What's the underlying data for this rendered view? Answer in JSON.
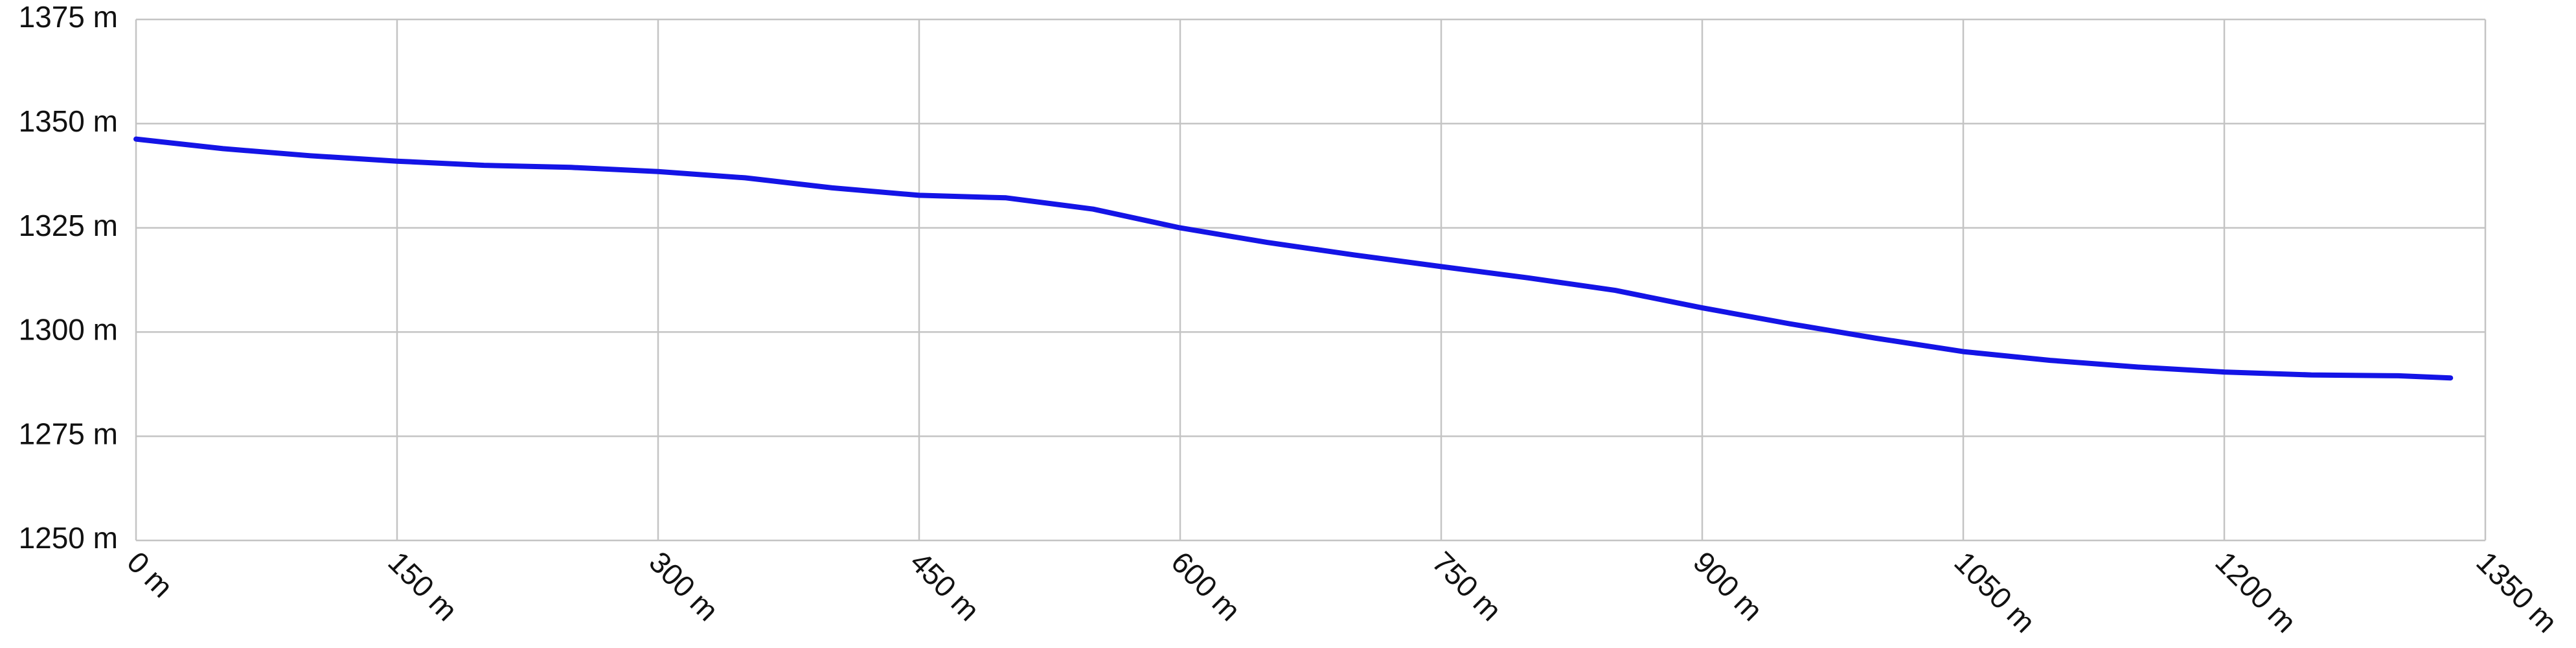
{
  "chart_data": {
    "type": "line",
    "x": [
      0,
      50,
      100,
      150,
      200,
      250,
      300,
      350,
      400,
      450,
      500,
      550,
      600,
      650,
      700,
      750,
      800,
      850,
      900,
      950,
      1000,
      1050,
      1100,
      1150,
      1200,
      1250,
      1300,
      1330
    ],
    "series": [
      {
        "color": "#1414e6",
        "values": [
          1346.3,
          1344,
          1342.3,
          1341,
          1340,
          1339.5,
          1338.5,
          1337,
          1334.6,
          1332.8,
          1332.2,
          1329.5,
          1325,
          1321.5,
          1318.5,
          1315.7,
          1313,
          1310,
          1305.8,
          1302,
          1298.5,
          1295.3,
          1293.2,
          1291.6,
          1290.4,
          1289.7,
          1289.5,
          1289
        ]
      }
    ],
    "xlim": [
      0,
      1350
    ],
    "xticks": [
      {
        "value": 0,
        "label": "0 m"
      },
      {
        "value": 150,
        "label": "150 m"
      },
      {
        "value": 300,
        "label": "300 m"
      },
      {
        "value": 450,
        "label": "450 m"
      },
      {
        "value": 600,
        "label": "600 m"
      },
      {
        "value": 750,
        "label": "750 m"
      },
      {
        "value": 900,
        "label": "900 m"
      },
      {
        "value": 1050,
        "label": "1050 m"
      },
      {
        "value": 1200,
        "label": "1200 m"
      },
      {
        "value": 1350,
        "label": "1350 m"
      }
    ],
    "ylim": [
      1250,
      1375
    ],
    "yticks": [
      {
        "value": 1250,
        "label": "1250 m"
      },
      {
        "value": 1275,
        "label": "1275 m"
      },
      {
        "value": 1300,
        "label": "1300 m"
      },
      {
        "value": 1325,
        "label": "1325 m"
      },
      {
        "value": 1350,
        "label": "1350 m"
      },
      {
        "value": 1375,
        "label": "1375 m"
      }
    ],
    "grid": true
  }
}
